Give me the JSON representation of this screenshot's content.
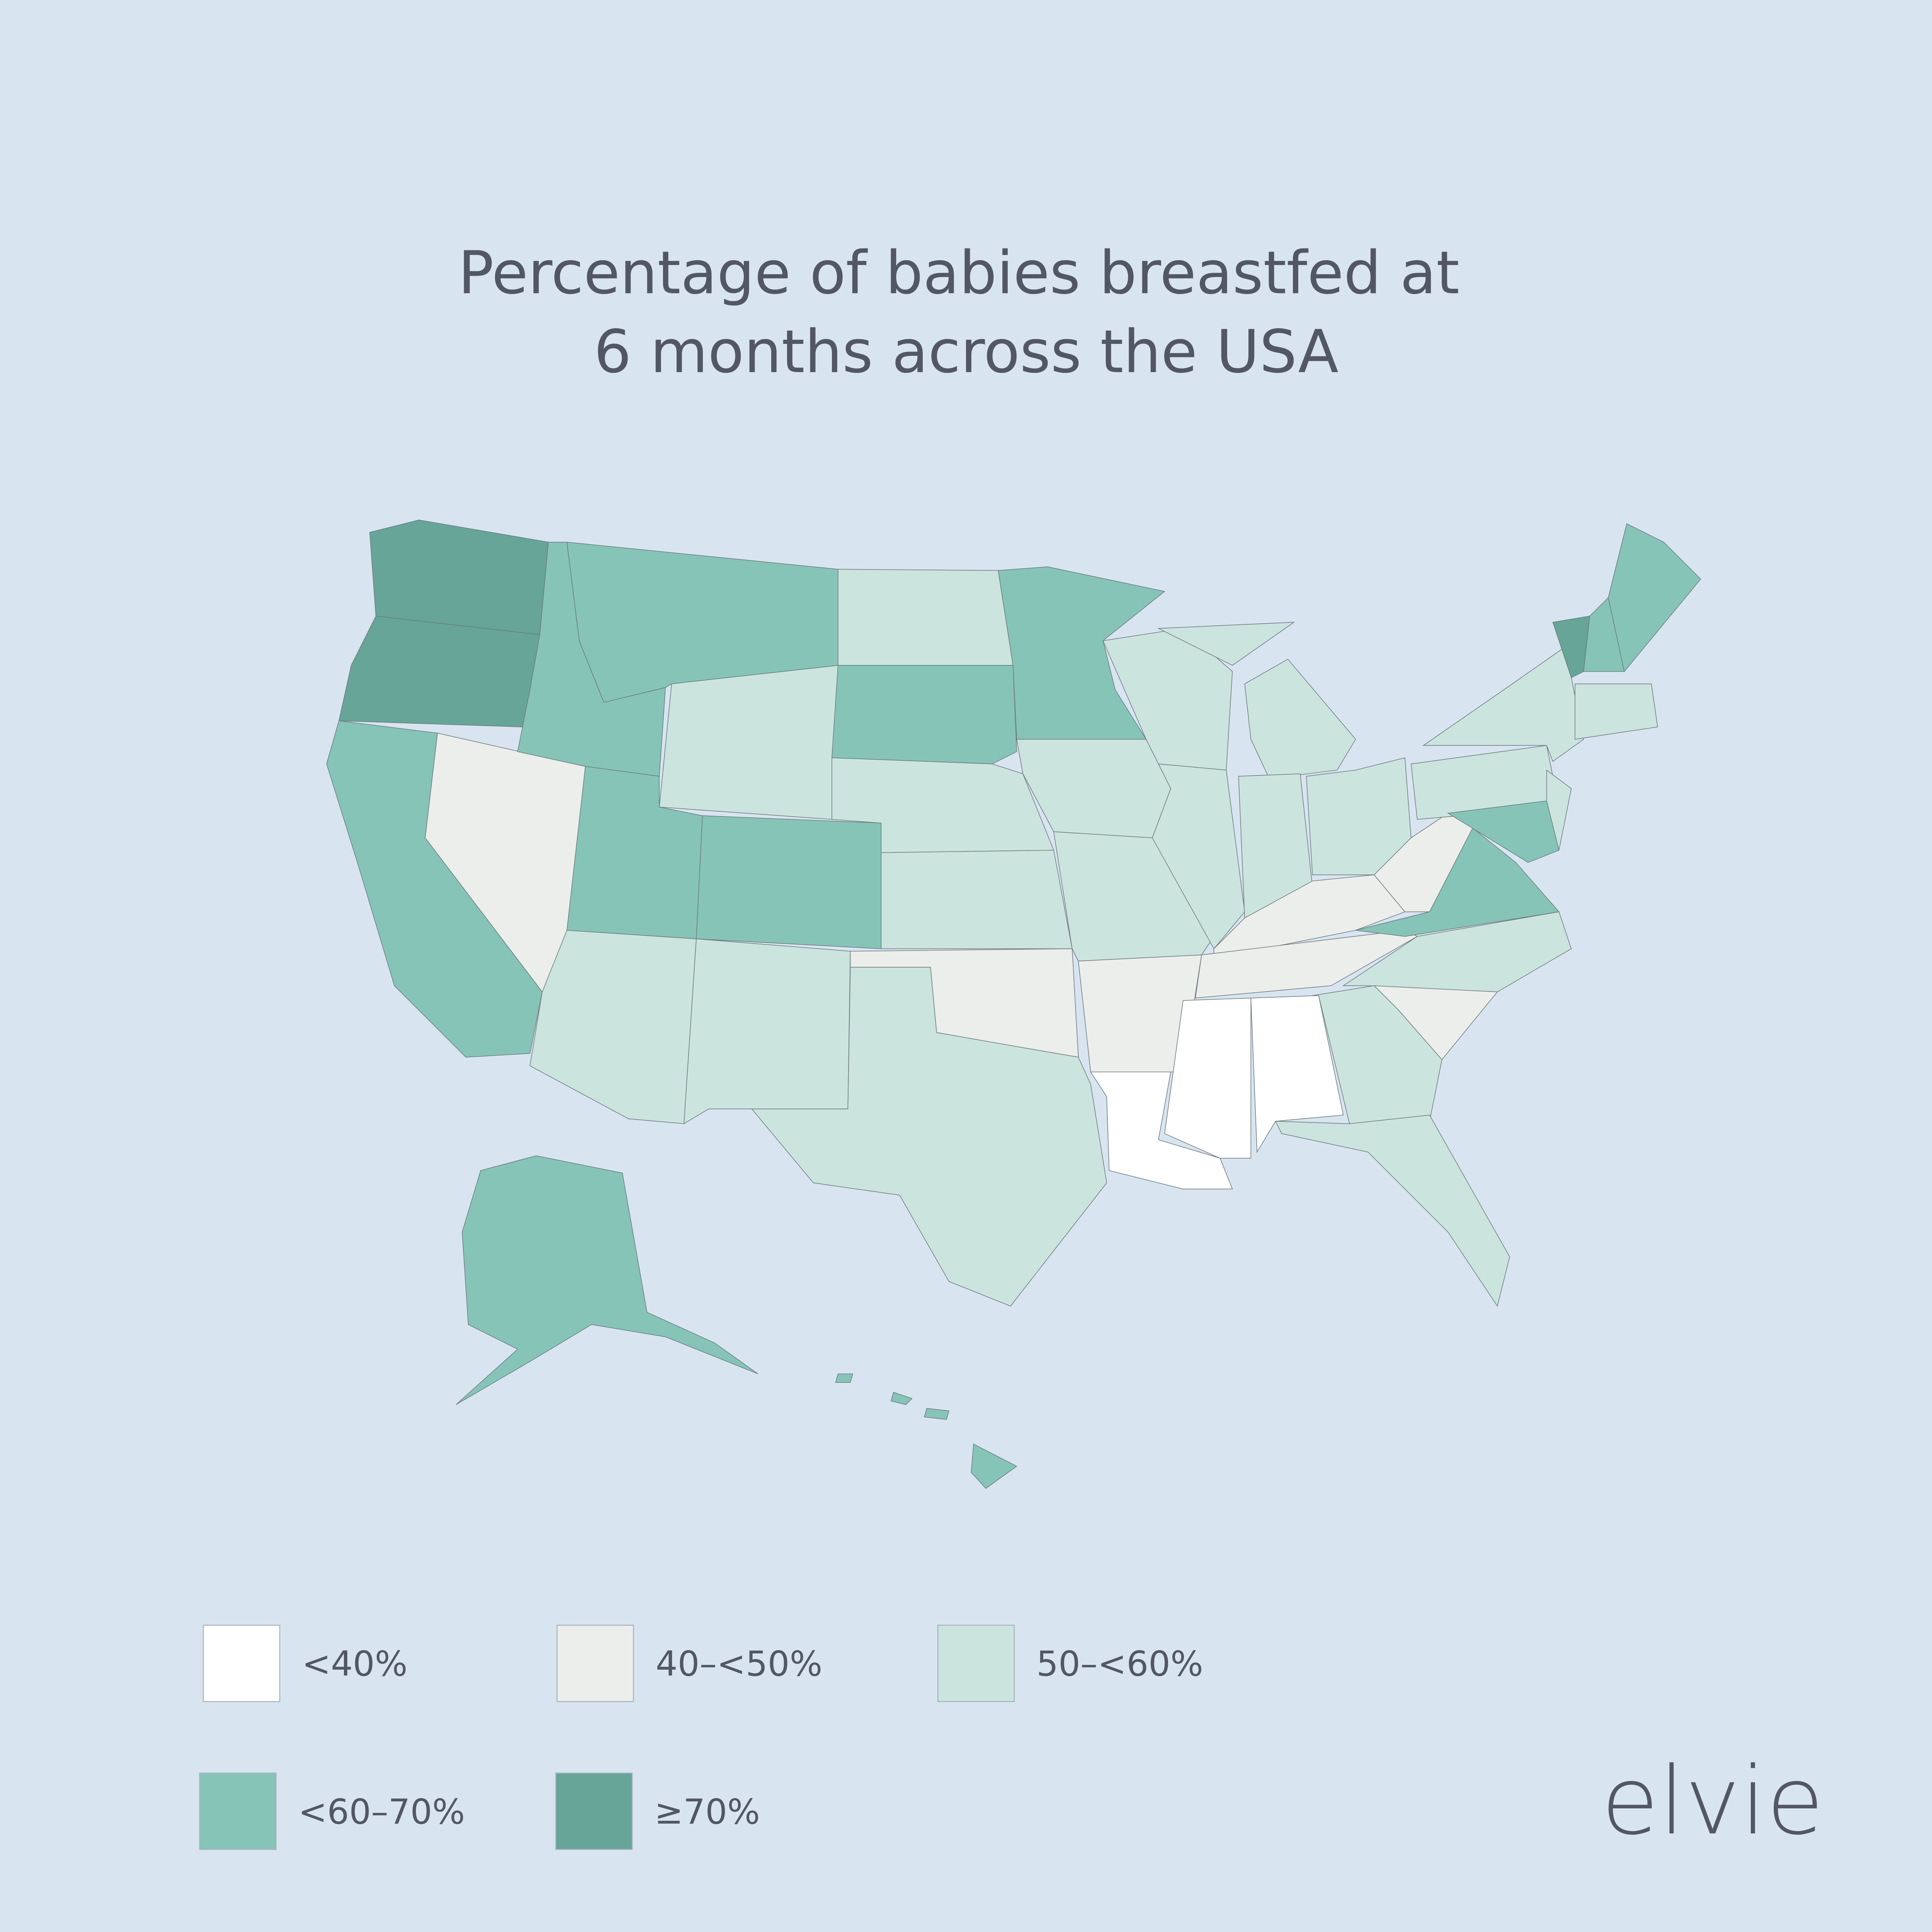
{
  "title": [
    "Percentage of babies breastfed at",
    "6 months across the USA"
  ],
  "legend": [
    {
      "label": "<40%",
      "color": "#ffffff"
    },
    {
      "label": "40–<50%",
      "color": "#eceeeb"
    },
    {
      "label": "50–<60%",
      "color": "#cce4de"
    },
    {
      "label": "<60–70%",
      "color": "#86c4b8"
    },
    {
      "label": "≥70%",
      "color": "#66a598"
    }
  ],
  "brand": "elvie"
}
